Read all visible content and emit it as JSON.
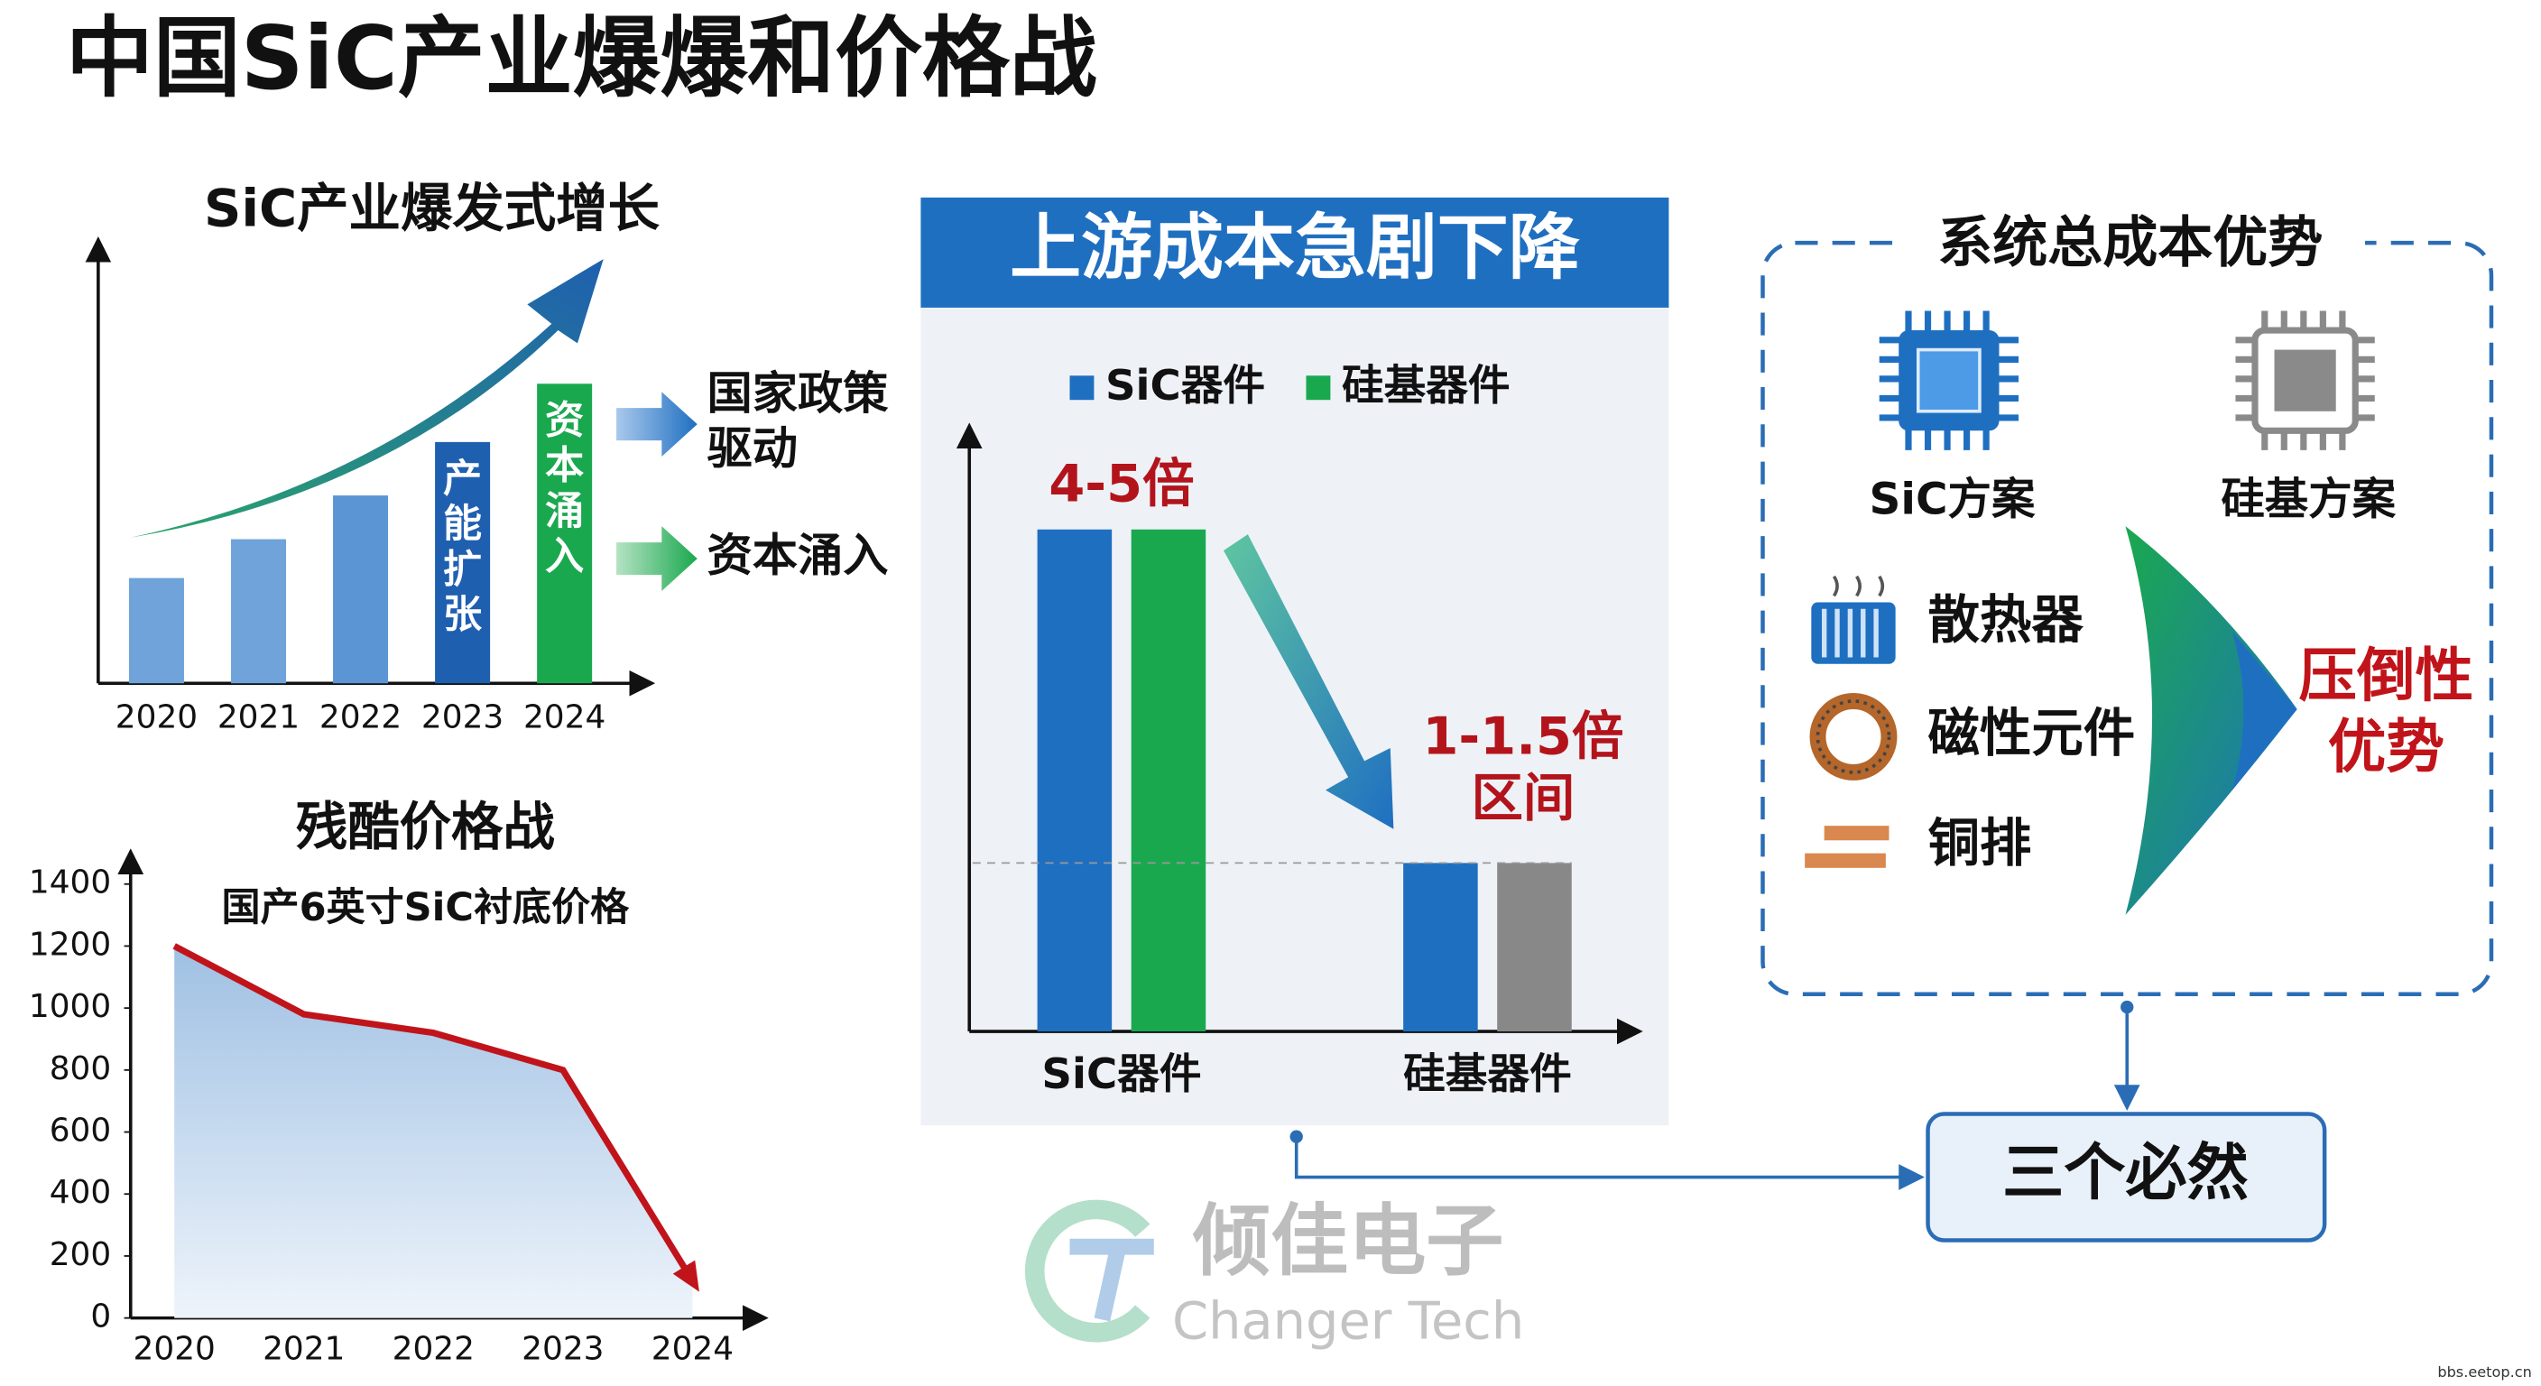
{
  "title": "中国SiC产业爆爆和价格战",
  "chart_data": [
    {
      "type": "bar",
      "title": "SiC产业爆发式增长",
      "categories": [
        "2020",
        "2021",
        "2022",
        "2023",
        "2024"
      ],
      "values": [
        65,
        89,
        116,
        149,
        185
      ],
      "colors": [
        "#6fa3da",
        "#6fa3da",
        "#5b95d3",
        "#1f5fb0",
        "#1aa84f"
      ],
      "bar_labels": [
        null,
        null,
        null,
        "产能扩张",
        "资本涌入"
      ],
      "ylim": [
        0,
        272
      ]
    },
    {
      "type": "line",
      "title": "残酷价格战",
      "subtitle": "国产6英寸SiC衬底价格",
      "categories": [
        "2020",
        "2021",
        "2022",
        "2023",
        "2024"
      ],
      "values": [
        1200,
        980,
        920,
        800,
        120
      ],
      "color": "#c0141a",
      "ylim": [
        0,
        1400
      ],
      "yticks": [
        0,
        200,
        400,
        600,
        800,
        1000,
        1200,
        1400
      ]
    },
    {
      "type": "grouped_bar",
      "title": "上游成本急剧下降",
      "categories": [
        "SiC器件",
        "硅基器件"
      ],
      "series": [
        {
          "name": "SiC器件",
          "color": "#1f6fc1",
          "values": [
            310,
            104
          ]
        },
        {
          "name": "硅基器件",
          "color": "#1aa84f",
          "colors": [
            "#1aa84f",
            "#888888"
          ],
          "values": [
            310,
            104
          ]
        }
      ],
      "annotations": [
        [
          "4-5倍"
        ],
        [
          "1-1.5倍",
          "区间"
        ]
      ],
      "ylim": [
        0,
        320
      ]
    }
  ],
  "drivers": [
    [
      "国家政策",
      "驱动"
    ],
    [
      "资本涌入"
    ]
  ],
  "system": {
    "title": "系统总成本优势",
    "options": [
      "SiC方案",
      "硅基方案"
    ],
    "items": [
      "散热器",
      "磁性元件",
      "铜排"
    ],
    "result": [
      "压倒性",
      "优势"
    ]
  },
  "conclusion": "三个必然",
  "watermark": {
    "name": "倾佳电子",
    "name_en": "Changer Tech",
    "site": "bbs.eetop.cn"
  }
}
